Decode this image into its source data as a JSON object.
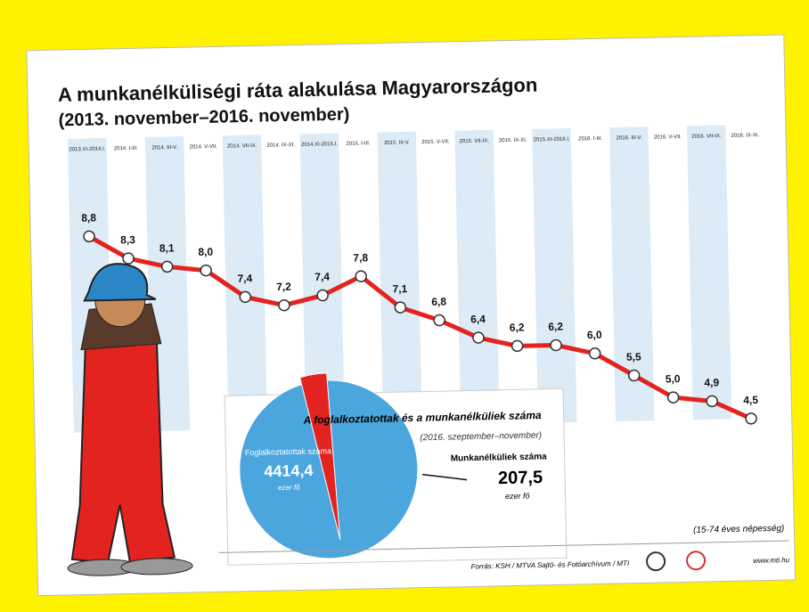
{
  "chart_data": [
    {
      "type": "line",
      "title": "A munkanélküliségi ráta alakulása Magyarországon",
      "subtitle": "(2013. november–2016. november)",
      "categories": [
        "2013.XI-2014.I.",
        "2014. I-III.",
        "2014. III-V.",
        "2014. V-VII.",
        "2014. VII-IX.",
        "2014. IX-XI.",
        "2014.XI-2015.I.",
        "2015. I-III.",
        "2015. III-V.",
        "2015. V-VII.",
        "2015. VII-IX.",
        "2015. IX-XI.",
        "2015.XI-2016.I.",
        "2016. I-III.",
        "2016. III-V.",
        "2016. V-VII.",
        "2016. VII-IX.",
        "2016. IX-XI."
      ],
      "values": [
        8.8,
        8.3,
        8.1,
        8.0,
        7.4,
        7.2,
        7.4,
        7.8,
        7.1,
        6.8,
        6.4,
        6.2,
        6.2,
        6.0,
        5.5,
        5.0,
        4.9,
        4.5
      ],
      "value_labels": [
        "8,8",
        "8,3",
        "8,1",
        "8,0",
        "7,4",
        "7,2",
        "7,4",
        "7,8",
        "7,1",
        "6,8",
        "6,4",
        "6,2",
        "6,2",
        "6,0",
        "5,5",
        "5,0",
        "4,9",
        "4,5"
      ],
      "color": "#e3231f"
    },
    {
      "type": "pie",
      "title": "A foglalkoztatottak és a munkanélküliek száma",
      "subtitle": "(2016. szeptember–november)",
      "categories": [
        "Foglalkoztatottak száma",
        "Munkanélküliek száma"
      ],
      "values": [
        4414.4,
        207.5
      ],
      "value_labels": [
        "4414,4",
        "207,5"
      ],
      "units": [
        "ezer fő",
        "ezer fő"
      ],
      "colors": [
        "#4aa6dd",
        "#e3231f"
      ],
      "note": "(15-74 éves népesség)"
    }
  ],
  "footer": {
    "source": "Forrás: KSH / MTVA Sajtó- és Fotóarchívum / MTI",
    "url": "www.mti.hu"
  }
}
